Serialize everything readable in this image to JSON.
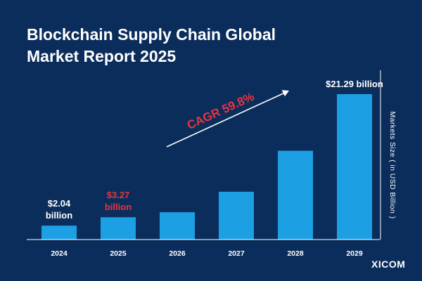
{
  "title": "Blockchain Supply Chain Global Market Report 2025",
  "brand": "XICOM",
  "colors": {
    "background": "#0b2d5c",
    "bar": "#1ca0e3",
    "label": "#ffffff",
    "highlight": "#e8343c"
  },
  "chart_data": {
    "type": "bar",
    "title": "Blockchain Supply Chain Global Market Report 2025",
    "xlabel": "",
    "ylabel": "Markets  Size ( in USD Billion )",
    "categories": [
      "2024",
      "2025",
      "2026",
      "2027",
      "2028",
      "2029"
    ],
    "values": [
      2.04,
      3.27,
      4.0,
      7.0,
      13.0,
      21.29
    ],
    "data_labels": [
      {
        "category": "2024",
        "lines": [
          "$2.04",
          "billion"
        ],
        "color": "#ffffff"
      },
      {
        "category": "2025",
        "lines": [
          "$3.27",
          "billion"
        ],
        "color": "#e8343c"
      },
      {
        "category": "2029",
        "lines": [
          "$21.29 billion"
        ],
        "color": "#ffffff"
      }
    ],
    "annotation": {
      "text": "CAGR 59.8%",
      "color": "#e8343c",
      "arrow": true
    },
    "grid": false,
    "legend": "none"
  }
}
